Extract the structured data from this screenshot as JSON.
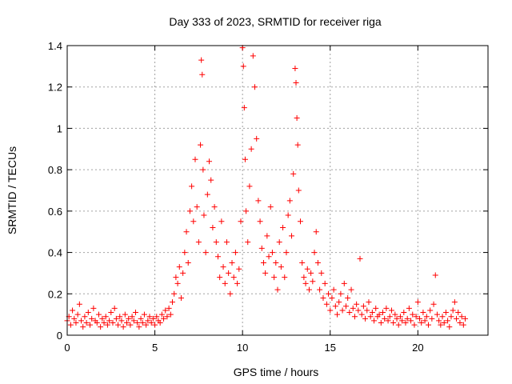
{
  "chart_data": {
    "type": "scatter",
    "title": "Day 333 of 2023, SRMTID for receiver riga",
    "xlabel": "GPS time / hours",
    "ylabel": "SRMTID / TECUs",
    "xlim": [
      0,
      24
    ],
    "ylim": [
      0,
      1.4
    ],
    "x_ticks": [
      0,
      5,
      10,
      15,
      20
    ],
    "x_tick_labels": [
      "0",
      "5",
      "10",
      "15",
      "20"
    ],
    "y_ticks": [
      0,
      0.2,
      0.4,
      0.6,
      0.8,
      1,
      1.2,
      1.4
    ],
    "y_tick_labels": [
      "0",
      "0.2",
      "0.4",
      "0.6",
      "0.8",
      "1",
      "1.2",
      "1.4"
    ],
    "grid": true,
    "marker": "+",
    "series": [
      {
        "name": "riga",
        "color": "#ff0000",
        "points": [
          [
            0.0,
            0.07
          ],
          [
            0.1,
            0.09
          ],
          [
            0.2,
            0.05
          ],
          [
            0.3,
            0.12
          ],
          [
            0.4,
            0.08
          ],
          [
            0.5,
            0.06
          ],
          [
            0.6,
            0.1
          ],
          [
            0.7,
            0.15
          ],
          [
            0.8,
            0.07
          ],
          [
            0.9,
            0.04
          ],
          [
            1.0,
            0.09
          ],
          [
            1.1,
            0.06
          ],
          [
            1.2,
            0.11
          ],
          [
            1.3,
            0.05
          ],
          [
            1.4,
            0.08
          ],
          [
            1.5,
            0.13
          ],
          [
            1.6,
            0.07
          ],
          [
            1.7,
            0.06
          ],
          [
            1.8,
            0.1
          ],
          [
            1.9,
            0.04
          ],
          [
            2.0,
            0.08
          ],
          [
            2.1,
            0.06
          ],
          [
            2.2,
            0.09
          ],
          [
            2.3,
            0.05
          ],
          [
            2.4,
            0.07
          ],
          [
            2.5,
            0.11
          ],
          [
            2.6,
            0.06
          ],
          [
            2.7,
            0.13
          ],
          [
            2.8,
            0.08
          ],
          [
            2.9,
            0.05
          ],
          [
            3.0,
            0.09
          ],
          [
            3.1,
            0.07
          ],
          [
            3.2,
            0.04
          ],
          [
            3.3,
            0.1
          ],
          [
            3.4,
            0.06
          ],
          [
            3.5,
            0.08
          ],
          [
            3.6,
            0.05
          ],
          [
            3.7,
            0.09
          ],
          [
            3.8,
            0.07
          ],
          [
            3.9,
            0.11
          ],
          [
            4.0,
            0.06
          ],
          [
            4.1,
            0.04
          ],
          [
            4.2,
            0.08
          ],
          [
            4.3,
            0.06
          ],
          [
            4.4,
            0.1
          ],
          [
            4.5,
            0.05
          ],
          [
            4.6,
            0.07
          ],
          [
            4.7,
            0.09
          ],
          [
            4.8,
            0.06
          ],
          [
            4.9,
            0.08
          ],
          [
            5.0,
            0.05
          ],
          [
            5.1,
            0.09
          ],
          [
            5.2,
            0.07
          ],
          [
            5.3,
            0.06
          ],
          [
            5.4,
            0.1
          ],
          [
            5.5,
            0.08
          ],
          [
            5.6,
            0.12
          ],
          [
            5.7,
            0.09
          ],
          [
            5.8,
            0.13
          ],
          [
            5.9,
            0.1
          ],
          [
            6.0,
            0.16
          ],
          [
            6.1,
            0.2
          ],
          [
            6.2,
            0.28
          ],
          [
            6.3,
            0.25
          ],
          [
            6.4,
            0.33
          ],
          [
            6.5,
            0.18
          ],
          [
            6.6,
            0.3
          ],
          [
            6.7,
            0.4
          ],
          [
            6.8,
            0.5
          ],
          [
            6.9,
            0.35
          ],
          [
            7.0,
            0.6
          ],
          [
            7.1,
            0.72
          ],
          [
            7.2,
            0.55
          ],
          [
            7.3,
            0.85
          ],
          [
            7.4,
            0.62
          ],
          [
            7.5,
            0.45
          ],
          [
            7.6,
            0.92
          ],
          [
            7.65,
            1.33
          ],
          [
            7.7,
            1.26
          ],
          [
            7.75,
            0.8
          ],
          [
            7.8,
            0.58
          ],
          [
            7.9,
            0.4
          ],
          [
            8.0,
            0.68
          ],
          [
            8.1,
            0.84
          ],
          [
            8.2,
            0.75
          ],
          [
            8.3,
            0.52
          ],
          [
            8.4,
            0.62
          ],
          [
            8.5,
            0.45
          ],
          [
            8.6,
            0.38
          ],
          [
            8.7,
            0.28
          ],
          [
            8.8,
            0.55
          ],
          [
            8.9,
            0.33
          ],
          [
            9.0,
            0.25
          ],
          [
            9.1,
            0.45
          ],
          [
            9.2,
            0.3
          ],
          [
            9.3,
            0.2
          ],
          [
            9.4,
            0.35
          ],
          [
            9.5,
            0.28
          ],
          [
            9.6,
            0.4
          ],
          [
            9.7,
            0.25
          ],
          [
            9.8,
            0.32
          ],
          [
            9.9,
            0.55
          ],
          [
            10.0,
            1.39
          ],
          [
            10.05,
            1.3
          ],
          [
            10.1,
            1.1
          ],
          [
            10.15,
            0.85
          ],
          [
            10.2,
            0.6
          ],
          [
            10.3,
            0.45
          ],
          [
            10.4,
            0.72
          ],
          [
            10.5,
            0.9
          ],
          [
            10.6,
            1.35
          ],
          [
            10.7,
            1.2
          ],
          [
            10.8,
            0.95
          ],
          [
            10.9,
            0.65
          ],
          [
            11.0,
            0.55
          ],
          [
            11.1,
            0.42
          ],
          [
            11.2,
            0.35
          ],
          [
            11.3,
            0.3
          ],
          [
            11.4,
            0.48
          ],
          [
            11.5,
            0.38
          ],
          [
            11.6,
            0.62
          ],
          [
            11.7,
            0.4
          ],
          [
            11.8,
            0.28
          ],
          [
            11.9,
            0.35
          ],
          [
            12.0,
            0.22
          ],
          [
            12.1,
            0.45
          ],
          [
            12.2,
            0.33
          ],
          [
            12.3,
            0.52
          ],
          [
            12.4,
            0.28
          ],
          [
            12.5,
            0.4
          ],
          [
            12.6,
            0.58
          ],
          [
            12.7,
            0.65
          ],
          [
            12.8,
            0.48
          ],
          [
            12.9,
            0.78
          ],
          [
            13.0,
            1.29
          ],
          [
            13.05,
            1.22
          ],
          [
            13.1,
            1.05
          ],
          [
            13.15,
            0.92
          ],
          [
            13.2,
            0.7
          ],
          [
            13.3,
            0.55
          ],
          [
            13.4,
            0.35
          ],
          [
            13.5,
            0.28
          ],
          [
            13.6,
            0.25
          ],
          [
            13.7,
            0.32
          ],
          [
            13.8,
            0.22
          ],
          [
            13.9,
            0.3
          ],
          [
            14.0,
            0.26
          ],
          [
            14.1,
            0.4
          ],
          [
            14.2,
            0.5
          ],
          [
            14.3,
            0.35
          ],
          [
            14.4,
            0.22
          ],
          [
            14.5,
            0.3
          ],
          [
            14.6,
            0.18
          ],
          [
            14.7,
            0.25
          ],
          [
            14.8,
            0.15
          ],
          [
            14.9,
            0.2
          ],
          [
            15.0,
            0.12
          ],
          [
            15.1,
            0.18
          ],
          [
            15.2,
            0.22
          ],
          [
            15.3,
            0.14
          ],
          [
            15.4,
            0.1
          ],
          [
            15.5,
            0.16
          ],
          [
            15.6,
            0.2
          ],
          [
            15.7,
            0.12
          ],
          [
            15.8,
            0.25
          ],
          [
            15.9,
            0.14
          ],
          [
            16.0,
            0.18
          ],
          [
            16.1,
            0.11
          ],
          [
            16.2,
            0.22
          ],
          [
            16.3,
            0.13
          ],
          [
            16.4,
            0.09
          ],
          [
            16.5,
            0.15
          ],
          [
            16.6,
            0.12
          ],
          [
            16.7,
            0.37
          ],
          [
            16.8,
            0.1
          ],
          [
            16.9,
            0.14
          ],
          [
            17.0,
            0.08
          ],
          [
            17.1,
            0.12
          ],
          [
            17.2,
            0.16
          ],
          [
            17.3,
            0.09
          ],
          [
            17.4,
            0.11
          ],
          [
            17.5,
            0.07
          ],
          [
            17.6,
            0.13
          ],
          [
            17.7,
            0.09
          ],
          [
            17.8,
            0.1
          ],
          [
            17.9,
            0.06
          ],
          [
            18.0,
            0.11
          ],
          [
            18.1,
            0.08
          ],
          [
            18.2,
            0.13
          ],
          [
            18.3,
            0.07
          ],
          [
            18.4,
            0.09
          ],
          [
            18.5,
            0.12
          ],
          [
            18.6,
            0.06
          ],
          [
            18.7,
            0.1
          ],
          [
            18.8,
            0.08
          ],
          [
            18.9,
            0.05
          ],
          [
            19.0,
            0.09
          ],
          [
            19.1,
            0.07
          ],
          [
            19.2,
            0.11
          ],
          [
            19.3,
            0.06
          ],
          [
            19.4,
            0.08
          ],
          [
            19.5,
            0.13
          ],
          [
            19.6,
            0.07
          ],
          [
            19.7,
            0.1
          ],
          [
            19.8,
            0.05
          ],
          [
            19.9,
            0.09
          ],
          [
            20.0,
            0.16
          ],
          [
            20.1,
            0.08
          ],
          [
            20.2,
            0.06
          ],
          [
            20.3,
            0.11
          ],
          [
            20.4,
            0.07
          ],
          [
            20.5,
            0.09
          ],
          [
            20.6,
            0.05
          ],
          [
            20.7,
            0.12
          ],
          [
            20.8,
            0.08
          ],
          [
            20.9,
            0.15
          ],
          [
            21.0,
            0.29
          ],
          [
            21.1,
            0.1
          ],
          [
            21.2,
            0.07
          ],
          [
            21.3,
            0.05
          ],
          [
            21.4,
            0.09
          ],
          [
            21.5,
            0.06
          ],
          [
            21.6,
            0.11
          ],
          [
            21.7,
            0.07
          ],
          [
            21.8,
            0.04
          ],
          [
            21.9,
            0.09
          ],
          [
            22.0,
            0.12
          ],
          [
            22.1,
            0.16
          ],
          [
            22.2,
            0.08
          ],
          [
            22.3,
            0.11
          ],
          [
            22.4,
            0.06
          ],
          [
            22.5,
            0.09
          ],
          [
            22.6,
            0.05
          ],
          [
            22.7,
            0.08
          ]
        ]
      }
    ]
  }
}
